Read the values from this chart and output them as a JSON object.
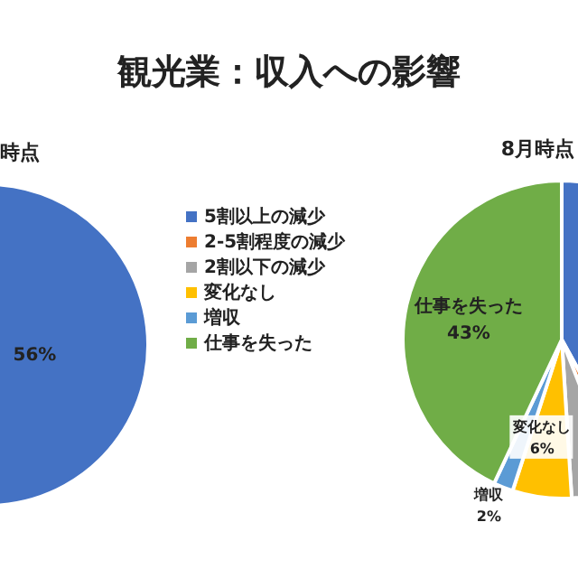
{
  "chart_data": [
    {
      "type": "pie",
      "title": "時点",
      "legend": "right",
      "annotations": [
        "観光業：収入への影響"
      ],
      "categories": [
        "5割以上の減少",
        "2-5割程度の減少",
        "2割以下の減少",
        "変化なし",
        "増収",
        "仕事を失った"
      ],
      "values": [
        56,
        null,
        null,
        null,
        null,
        null
      ],
      "colors": [
        "#4472c4",
        "#ed7d31",
        "#a5a5a5",
        "#ffc000",
        "#5b9bd5",
        "#70ad47"
      ],
      "value_labels": [
        "56%",
        null,
        null,
        null,
        null,
        null
      ]
    },
    {
      "type": "pie",
      "title": "8月時点",
      "categories": [
        null,
        null,
        null,
        "変化なし",
        "増収",
        "仕事を失った"
      ],
      "values": [
        42,
        2,
        5,
        6,
        2,
        43
      ],
      "colors": [
        "#4472c4",
        "#ed7d31",
        "#a5a5a5",
        "#ffc000",
        "#5b9bd5",
        "#70ad47"
      ],
      "value_labels": [
        null,
        null,
        null,
        "6%",
        "2%",
        "43%"
      ]
    }
  ]
}
